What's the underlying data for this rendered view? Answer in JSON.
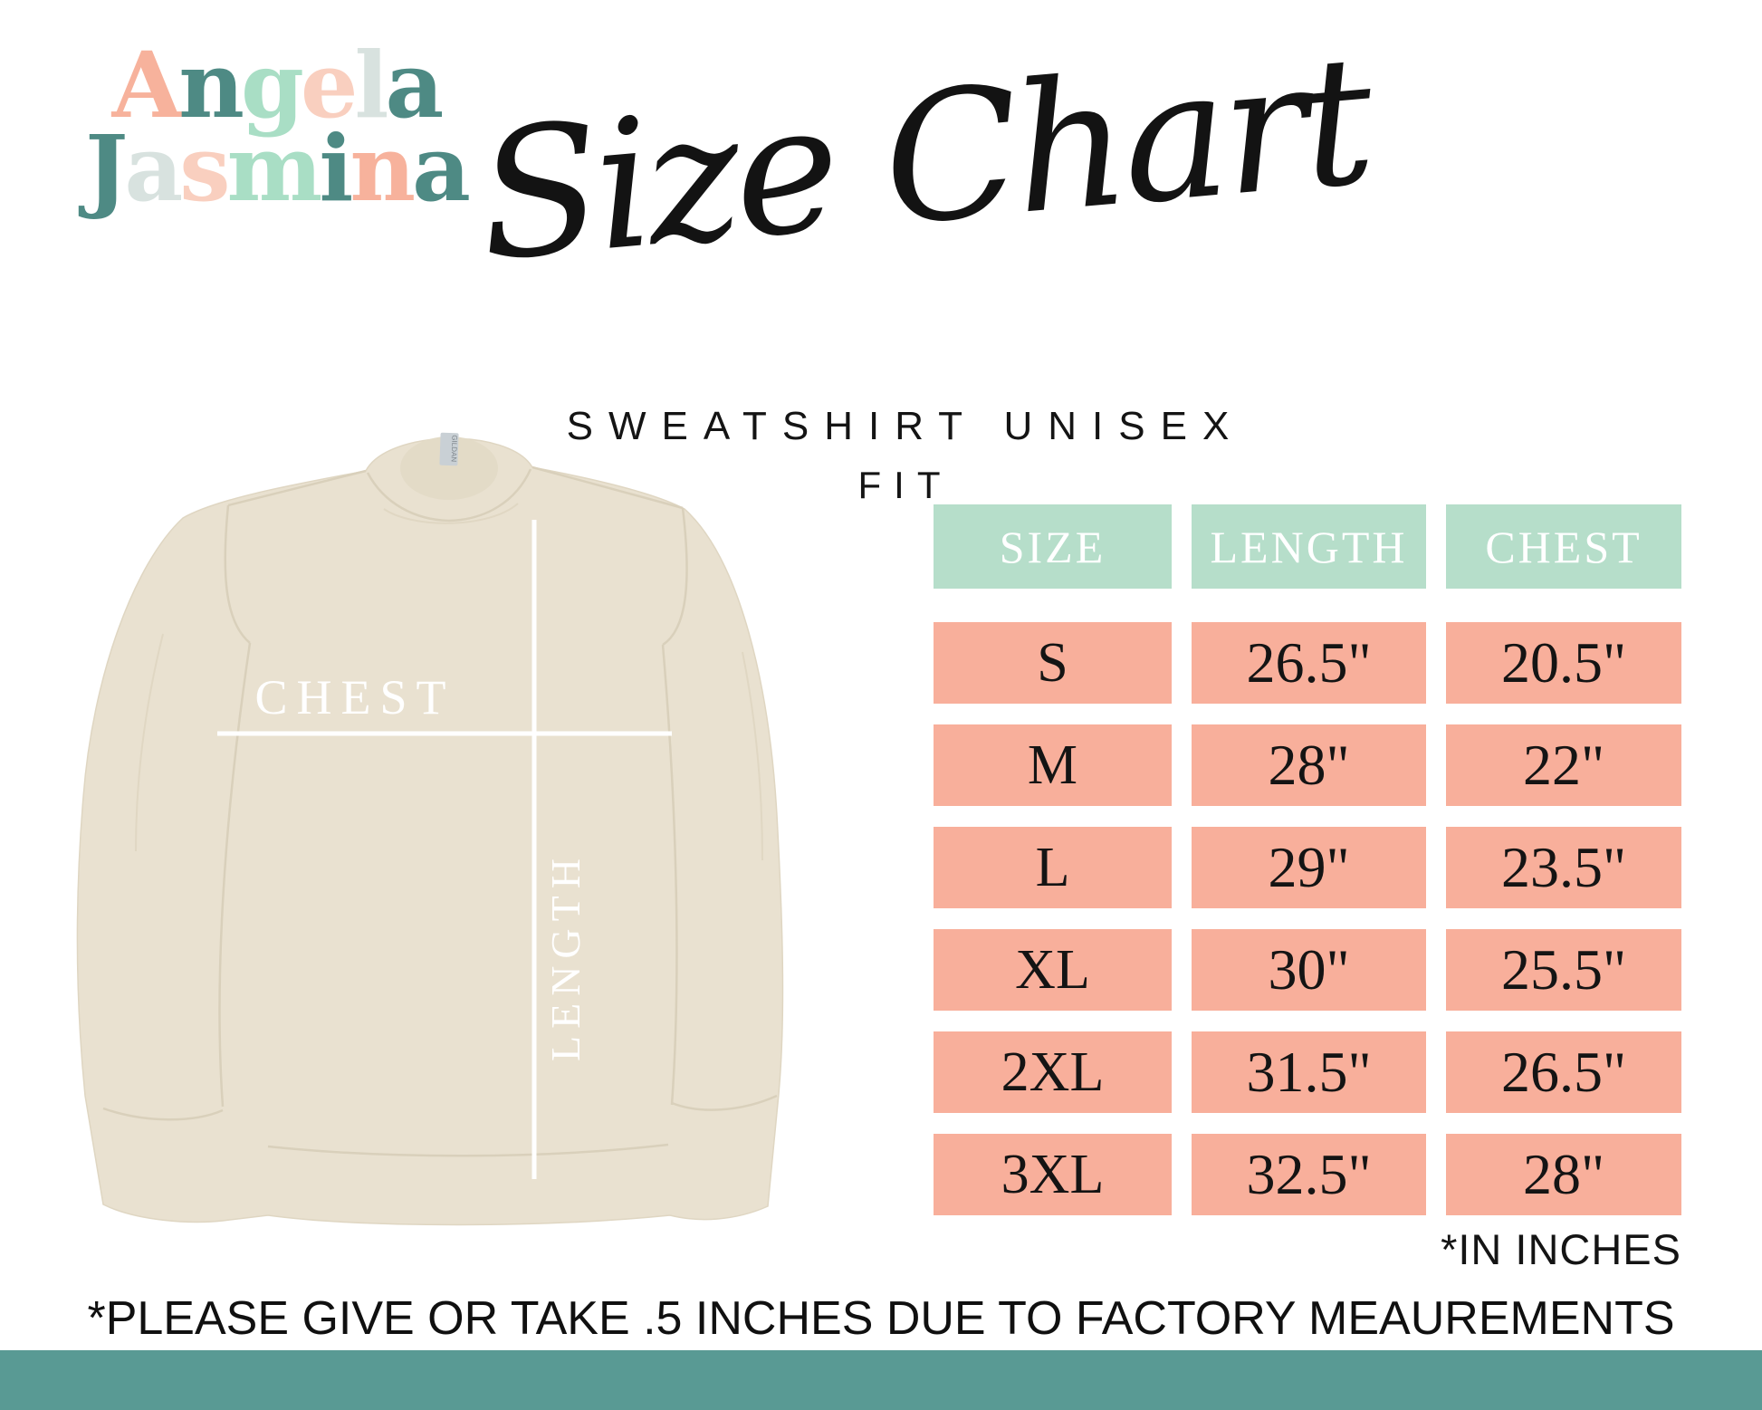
{
  "logo": {
    "line1": "Angela",
    "line2": "Jasmina",
    "line1_colors": [
      "#F7B29C",
      "#4E8A84",
      "#A9DEC5",
      "#F9CFBF",
      "#D8E2DF",
      "#4E8A84"
    ],
    "line2_colors": [
      "#4E8A84",
      "#D8E2DF",
      "#F9CFBF",
      "#A9DEC5",
      "#4E8A84",
      "#F7B29C",
      "#4E8A84"
    ]
  },
  "title": {
    "text": "Size Chart",
    "color": "#131313"
  },
  "subtitle": {
    "line1": "SWEATSHIRT UNISEX",
    "line2": "FIT"
  },
  "garment": {
    "chest_label": "CHEST",
    "length_label": "LENGTH",
    "tag_label": "GILDAN",
    "body_color": "#E9E1D0",
    "measure_line_color": "#FFFFFF"
  },
  "chart_data": {
    "type": "table",
    "title": "Sweatshirt Unisex Fit Size Chart",
    "columns": [
      "SIZE",
      "LENGTH",
      "CHEST"
    ],
    "rows": [
      {
        "size": "S",
        "length": "26.5\"",
        "chest": "20.5\""
      },
      {
        "size": "M",
        "length": "28\"",
        "chest": "22\""
      },
      {
        "size": "L",
        "length": "29\"",
        "chest": "23.5\""
      },
      {
        "size": "XL",
        "length": "30\"",
        "chest": "25.5\""
      },
      {
        "size": "2XL",
        "length": "31.5\"",
        "chest": "26.5\""
      },
      {
        "size": "3XL",
        "length": "32.5\"",
        "chest": "28\""
      }
    ],
    "units_note": "*IN INCHES",
    "header_bg": "#B6DECA",
    "cell_bg": "#F8AF9B"
  },
  "footer": {
    "note": "*PLEASE GIVE OR TAKE .5 INCHES DUE TO FACTORY MEAUREMENTS",
    "bar_color": "#599A94"
  }
}
